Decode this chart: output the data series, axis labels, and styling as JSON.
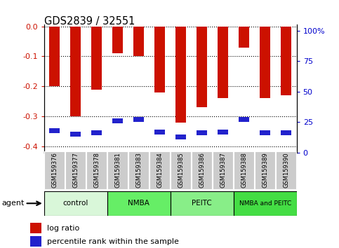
{
  "title": "GDS2839 / 32551",
  "samples": [
    "GSM159376",
    "GSM159377",
    "GSM159378",
    "GSM159381",
    "GSM159383",
    "GSM159384",
    "GSM159385",
    "GSM159386",
    "GSM159387",
    "GSM159388",
    "GSM159389",
    "GSM159390"
  ],
  "log_ratios": [
    -0.2,
    -0.3,
    -0.21,
    -0.09,
    -0.1,
    -0.22,
    -0.32,
    -0.27,
    -0.24,
    -0.07,
    -0.24,
    -0.23
  ],
  "percentile_ranks": [
    18,
    15,
    16,
    26,
    27,
    17,
    13,
    16,
    17,
    27,
    16,
    16
  ],
  "bar_color": "#cc1100",
  "percentile_color": "#2222cc",
  "groups": [
    {
      "label": "control",
      "start": 0,
      "end": 3,
      "color": "#d9f7d9"
    },
    {
      "label": "NMBA",
      "start": 3,
      "end": 6,
      "color": "#66ee66"
    },
    {
      "label": "PEITC",
      "start": 6,
      "end": 9,
      "color": "#88ee88"
    },
    {
      "label": "NMBA and PEITC",
      "start": 9,
      "end": 12,
      "color": "#44dd44"
    }
  ],
  "ylim_left": [
    -0.42,
    0.005
  ],
  "ylim_right": [
    0,
    105
  ],
  "yticks_left": [
    -0.4,
    -0.3,
    -0.2,
    -0.1,
    0.0
  ],
  "yticks_right": [
    0,
    25,
    50,
    75,
    100
  ],
  "axis_label_color_left": "#cc1100",
  "axis_label_color_right": "#0000cc",
  "bar_width": 0.5,
  "blue_bar_height": 0.016,
  "xtick_bg_color": "#cccccc",
  "xtick_border_color": "#aaaaaa"
}
